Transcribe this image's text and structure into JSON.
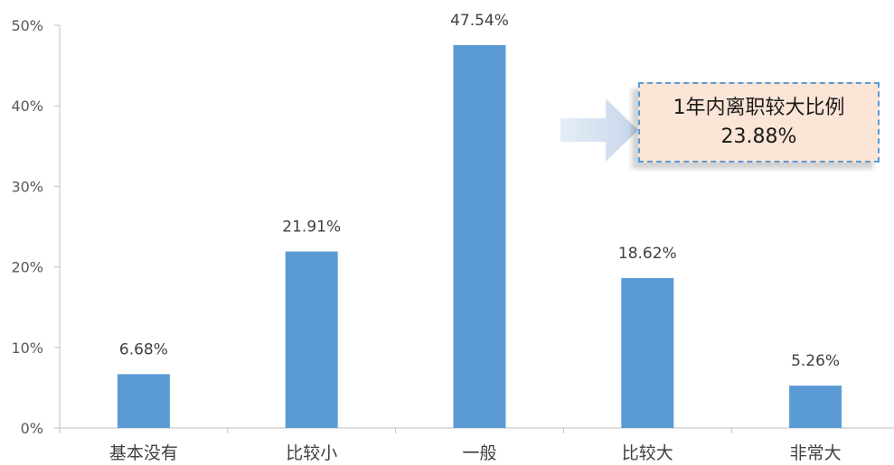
{
  "chart_data": {
    "type": "bar",
    "categories": [
      "基本没有",
      "比较小",
      "一般",
      "比较大",
      "非常大"
    ],
    "values": [
      6.68,
      21.91,
      47.54,
      18.62,
      5.26
    ],
    "data_labels": [
      "6.68%",
      "21.91%",
      "47.54%",
      "18.62%",
      "5.26%"
    ],
    "yticks": [
      "0%",
      "10%",
      "20%",
      "30%",
      "40%",
      "50%"
    ],
    "ylim": [
      0,
      50
    ],
    "bar_color": "#5b9bd5",
    "grid": false,
    "annotation": {
      "line1": "1年内离职较大比例",
      "line2": "23.88%"
    }
  }
}
